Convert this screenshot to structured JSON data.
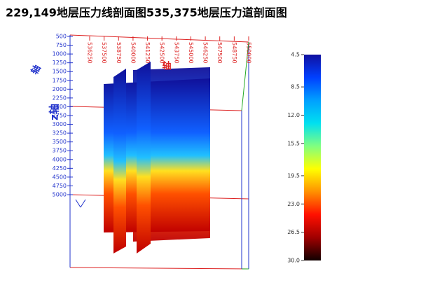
{
  "chart_data": {
    "type": "section-3d",
    "title": "229,149地层压力线剖面图535,375地层压力道剖面图",
    "zaxis": {
      "label": "z轴",
      "color": "#2233cc",
      "lim": [
        500,
        5000
      ],
      "ticks": [
        500,
        750,
        1000,
        1250,
        1500,
        1750,
        2000,
        2250,
        2500,
        2750,
        3000,
        3250,
        3500,
        3750,
        4000,
        4250,
        4500,
        4750,
        5000
      ]
    },
    "xaxis": {
      "label": "轴",
      "color": "#dd2222",
      "lim": [
        536250,
        550000
      ],
      "ticks": [
        536250,
        537500,
        538750,
        540000,
        541250,
        542500,
        543750,
        545000,
        546250,
        547500,
        548750,
        550000
      ]
    },
    "yaxis": {
      "label": "轴",
      "color": "#2233cc"
    },
    "colorbar": {
      "lim": [
        4.5,
        30
      ],
      "ticks": [
        4.5,
        8.5,
        {
          "value": 12,
          "label": "12.0"
        },
        15.5,
        19.5,
        {
          "value": 23,
          "label": "23.0"
        },
        26.5,
        {
          "value": 30,
          "label": "30.0"
        }
      ],
      "colors": [
        "#1010a0",
        "#0040ff",
        "#00a0ff",
        "#00e0f0",
        "#80ff80",
        "#ffff00",
        "#ff9000",
        "#ff1000",
        "#a00000",
        "#100000"
      ]
    }
  }
}
